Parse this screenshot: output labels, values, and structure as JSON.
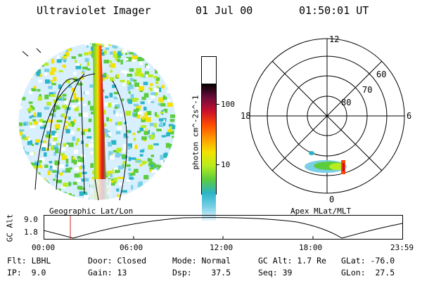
{
  "header": {
    "title": "Ultraviolet Imager",
    "date": "01 Jul 00",
    "time": "01:50:01 UT"
  },
  "left_panel": {
    "caption": "Geographic Lat/Lon"
  },
  "colorbar": {
    "unit_label": "photon cm^-2s^-1",
    "ticks": [
      "100",
      "10"
    ],
    "colors": [
      "#000000",
      "#6a0d3a",
      "#c8102e",
      "#ff4a00",
      "#ff9a00",
      "#f4e200",
      "#b8ec1e",
      "#5ccc3c",
      "#2ab4c8",
      "#7ad0e6",
      "#e8f4ff"
    ]
  },
  "right_panel": {
    "caption": "Apex MLat/MLT",
    "mlt_labels": {
      "top": "12",
      "left": "18",
      "right": "6",
      "bottom": "0"
    },
    "lat_labels": [
      "60",
      "70",
      "80"
    ]
  },
  "altitude_plot": {
    "ylabel": "GC Alt",
    "ytick_upper": "9.0",
    "ytick_lower": "1.8",
    "xticks": [
      "00:00",
      "06:00",
      "12:00",
      "18:00",
      "23:59"
    ],
    "marker_time": "01:50"
  },
  "info": {
    "flt": "Flt: LBHL",
    "ip": "IP:  9.0",
    "door": "Door: Closed",
    "gain": "Gain: 13",
    "mode": "Mode: Normal",
    "dsp": "Dsp:    37.5",
    "gc_alt": "GC Alt: 1.7 Re",
    "seq": "Seq: 39",
    "glat": "GLat: -76.0",
    "glon": "GLon:  27.5"
  }
}
